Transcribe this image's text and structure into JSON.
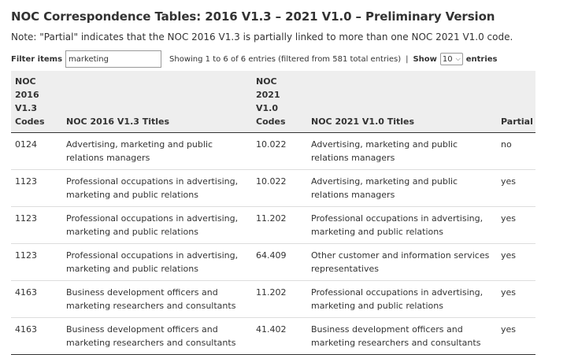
{
  "page": {
    "title": "NOC Correspondence Tables: 2016 V1.3 – 2021 V1.0 – Preliminary Version",
    "note": "Note: \"Partial\" indicates that the NOC 2016 V1.3 is partially linked to more than one NOC 2021 V1.0 code."
  },
  "controls": {
    "filter_label": "Filter items",
    "filter_value": "marketing",
    "info_text": "Showing 1 to 6 of 6 entries (filtered from 581 total entries)",
    "separator": "|",
    "show_label": "Show",
    "show_value": "10",
    "entries_label": "entries"
  },
  "table": {
    "headers": {
      "noc2016_code": "NOC 2016 V1.3 Codes",
      "noc2016_title": "NOC 2016 V1.3 Titles",
      "noc2021_code": "NOC 2021 V1.0 Codes",
      "noc2021_title": "NOC 2021 V1.0 Titles",
      "partial": "Partial"
    },
    "rows": [
      {
        "code2016": "0124",
        "title2016": "Advertising, marketing and public relations managers",
        "code2021": "10.022",
        "title2021": "Advertising, marketing and public relations managers",
        "partial": "no"
      },
      {
        "code2016": "1123",
        "title2016": "Professional occupations in advertising, marketing and public relations",
        "code2021": "10.022",
        "title2021": "Advertising, marketing and public relations managers",
        "partial": "yes"
      },
      {
        "code2016": "1123",
        "title2016": "Professional occupations in advertising, marketing and public relations",
        "code2021": "11.202",
        "title2021": "Professional occupations in advertising, marketing and public relations",
        "partial": "yes"
      },
      {
        "code2016": "1123",
        "title2016": "Professional occupations in advertising, marketing and public relations",
        "code2021": "64.409",
        "title2021": "Other customer and information services representatives",
        "partial": "yes"
      },
      {
        "code2016": "4163",
        "title2016": "Business development officers and marketing researchers and consultants",
        "code2021": "11.202",
        "title2021": "Professional occupations in advertising, marketing and public relations",
        "partial": "yes"
      },
      {
        "code2016": "4163",
        "title2016": "Business development officers and marketing researchers and consultants",
        "code2021": "41.402",
        "title2021": "Business development officers and marketing researchers and consultants",
        "partial": "yes"
      }
    ]
  }
}
